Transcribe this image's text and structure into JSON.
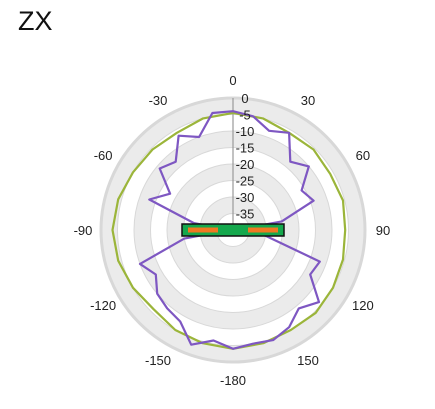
{
  "title": "ZX",
  "chart_data": {
    "type": "polar-line",
    "title": "ZX",
    "angle_ticks": [
      0,
      30,
      60,
      90,
      120,
      150,
      -180,
      -150,
      -120,
      -90,
      -60,
      -30
    ],
    "angle_tick_labels": [
      "0",
      "30",
      "60",
      "90",
      "120",
      "150",
      "-180",
      "-150",
      "-120",
      "-90",
      "-60",
      "-30"
    ],
    "radial_ticks": [
      0,
      -5,
      -10,
      -15,
      -20,
      -25,
      -30,
      -35
    ],
    "radial_tick_labels": [
      "0",
      "-5",
      "-10",
      "-15",
      "-20",
      "-25",
      "-30",
      "-35"
    ],
    "r_range": [
      -40,
      0
    ],
    "grid": true,
    "colors": {
      "series_1": "#9bb53a",
      "series_2": "#7e57c2",
      "ring_fill": "#ebebeb",
      "ring_stroke": "#d8d8d8",
      "axis": "#999999",
      "board_green": "#15a84d",
      "board_orange": "#f07820",
      "board_outline": "#111111"
    },
    "series": [
      {
        "color": "#9bb53a",
        "points": [
          [
            0,
            -4.5
          ],
          [
            15,
            -5
          ],
          [
            30,
            -6
          ],
          [
            45,
            -5.5
          ],
          [
            60,
            -6
          ],
          [
            75,
            -5.5
          ],
          [
            90,
            -6
          ],
          [
            105,
            -5.5
          ],
          [
            120,
            -5
          ],
          [
            135,
            -4.5
          ],
          [
            150,
            -5
          ],
          [
            165,
            -4.5
          ],
          [
            180,
            -4
          ],
          [
            -165,
            -4.5
          ],
          [
            -150,
            -5
          ],
          [
            -135,
            -6
          ],
          [
            -120,
            -5
          ],
          [
            -105,
            -4
          ],
          [
            -90,
            -3.5
          ],
          [
            -75,
            -4
          ],
          [
            -60,
            -5
          ],
          [
            -45,
            -5.5
          ],
          [
            -30,
            -6
          ],
          [
            -15,
            -5
          ]
        ]
      },
      {
        "color": "#7e57c2",
        "points": [
          [
            0,
            -4
          ],
          [
            10,
            -5
          ],
          [
            20,
            -8
          ],
          [
            30,
            -6
          ],
          [
            40,
            -13
          ],
          [
            50,
            -10
          ],
          [
            60,
            -16
          ],
          [
            70,
            -14
          ],
          [
            80,
            -25
          ],
          [
            90,
            -39
          ],
          [
            100,
            -30
          ],
          [
            110,
            -12
          ],
          [
            120,
            -13
          ],
          [
            130,
            -6
          ],
          [
            140,
            -9
          ],
          [
            150,
            -6
          ],
          [
            160,
            -4.5
          ],
          [
            170,
            -5
          ],
          [
            180,
            -4
          ],
          [
            -170,
            -6
          ],
          [
            -160,
            -3
          ],
          [
            -150,
            -8
          ],
          [
            -140,
            -9
          ],
          [
            -130,
            -10
          ],
          [
            -120,
            -13
          ],
          [
            -110,
            -10
          ],
          [
            -100,
            -25
          ],
          [
            -90,
            -39
          ],
          [
            -80,
            -28
          ],
          [
            -70,
            -13
          ],
          [
            -60,
            -18
          ],
          [
            -50,
            -11
          ],
          [
            -40,
            -13
          ],
          [
            -30,
            -7
          ],
          [
            -20,
            -10
          ],
          [
            -10,
            -4
          ]
        ]
      }
    ]
  }
}
